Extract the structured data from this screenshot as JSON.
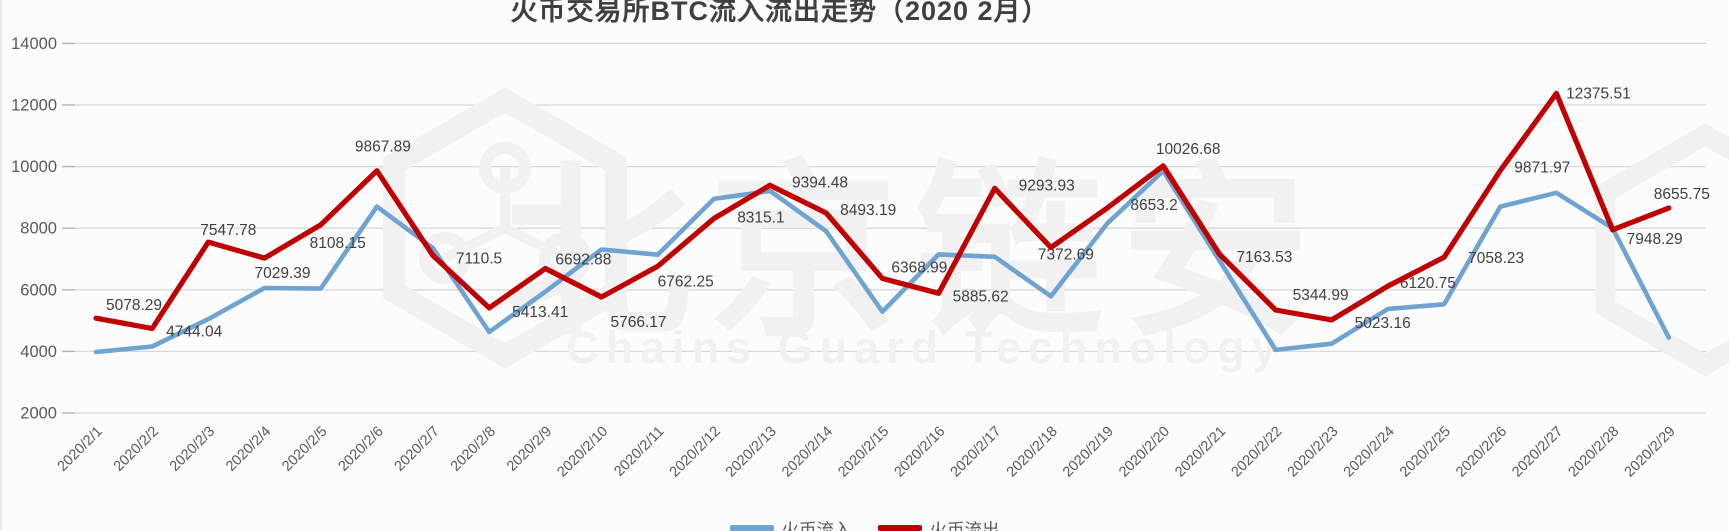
{
  "title": "火币交易所BTC流入流出走势（2020 2月）",
  "watermark": {
    "cn": "北京链安",
    "en": "Chains Guard Technology"
  },
  "legend": [
    {
      "label": "火币流入",
      "color": "#6FA3D2"
    },
    {
      "label": "火币流出",
      "color": "#C00000"
    }
  ],
  "chart_data": {
    "type": "line",
    "title": "火币交易所BTC流入流出走势（2020 2月）",
    "categories": [
      "2020/2/1",
      "2020/2/2",
      "2020/2/3",
      "2020/2/4",
      "2020/2/5",
      "2020/2/6",
      "2020/2/7",
      "2020/2/8",
      "2020/2/9",
      "2020/2/10",
      "2020/2/11",
      "2020/2/12",
      "2020/2/13",
      "2020/2/14",
      "2020/2/15",
      "2020/2/16",
      "2020/2/17",
      "2020/2/18",
      "2020/2/19",
      "2020/2/20",
      "2020/2/21",
      "2020/2/22",
      "2020/2/23",
      "2020/2/24",
      "2020/2/25",
      "2020/2/26",
      "2020/2/27",
      "2020/2/28",
      "2020/2/29"
    ],
    "series": [
      {
        "name": "火币流入",
        "color": "#6FA3D2",
        "data_labels": false,
        "values": [
          3980,
          4160,
          5050,
          6060,
          6040,
          8700,
          7350,
          4630,
          5940,
          7310,
          7140,
          8950,
          9210,
          7900,
          5290,
          7150,
          7070,
          5790,
          8150,
          9860,
          6950,
          4050,
          4250,
          5380,
          5530,
          8700,
          9150,
          8000,
          4450
        ]
      },
      {
        "name": "火币流出",
        "color": "#C00000",
        "data_labels": true,
        "values": [
          5078.29,
          4744.04,
          7547.78,
          7029.39,
          8108.15,
          9867.89,
          7110.5,
          5413.41,
          6692.88,
          5766.17,
          6762.25,
          8315.1,
          9394.48,
          8493.19,
          6368.99,
          5885.62,
          9293.93,
          7372.69,
          8653.2,
          10026.68,
          7163.53,
          5344.99,
          5023.16,
          6120.75,
          7058.23,
          9871.97,
          12375.51,
          7948.29,
          8655.75
        ]
      }
    ],
    "xlabel": "",
    "ylabel": "",
    "ylim": [
      2000,
      14000
    ],
    "ytick_step": 2000,
    "grid": true,
    "legend_position": "bottom"
  },
  "colors": {
    "grid": "#d9d9d9",
    "tick": "#b3b3b3",
    "axis_text": "#595959",
    "label_text": "#404040",
    "title_text": "#404040",
    "watermark": "#f1f1f1",
    "background": "#fcfcfc"
  }
}
